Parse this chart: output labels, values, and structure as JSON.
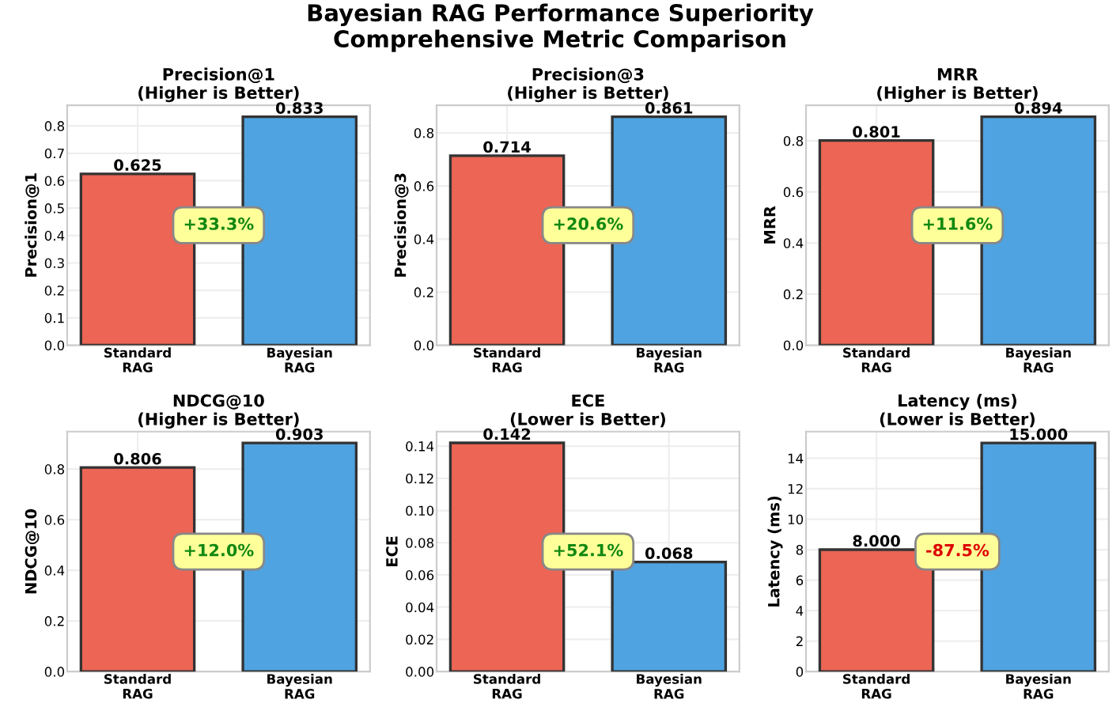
{
  "chart_data": [
    {
      "type": "bar",
      "title": "Precision@1\n(Higher is Better)",
      "subtitle": "Bayesian RAG Performance Superiority\nComprehensive Metric Comparison",
      "ylabel": "Precision@1",
      "categories": [
        "Standard\nRAG",
        "Bayesian\nRAG"
      ],
      "values": [
        0.625,
        0.833
      ],
      "value_labels": [
        "0.625",
        "0.833"
      ],
      "colors": [
        "#ec6555",
        "#4fa3e0"
      ],
      "ylim": [
        0,
        0.875
      ],
      "yticks": [
        {
          "value": 0,
          "label": "0.0"
        },
        0.1,
        0.2,
        0.3,
        0.4,
        0.5,
        0.6,
        0.7,
        0.8
      ],
      "grid": true,
      "annotations": [
        "+33.3%"
      ]
    },
    {
      "type": "bar",
      "title": "Precision@3\n(Higher is Better)",
      "ylabel": "Precision@3",
      "categories": [
        "Standard\nRAG",
        "Bayesian\nRAG"
      ],
      "values": [
        0.714,
        0.861
      ],
      "value_labels": [
        "0.714",
        "0.861"
      ],
      "colors": [
        "#ec6555",
        "#4fa3e0"
      ],
      "ylim": [
        0,
        0.904
      ],
      "yticks": [
        {
          "value": 0,
          "label": "0.0"
        },
        0.2,
        0.4,
        0.6,
        0.8
      ],
      "grid": true,
      "annotations": [
        "+20.6%"
      ]
    },
    {
      "type": "bar",
      "title": "MRR\n(Higher is Better)",
      "ylabel": "MRR",
      "categories": [
        "Standard\nRAG",
        "Bayesian\nRAG"
      ],
      "values": [
        0.801,
        0.894
      ],
      "value_labels": [
        "0.801",
        "0.894"
      ],
      "colors": [
        "#ec6555",
        "#4fa3e0"
      ],
      "ylim": [
        0,
        0.939
      ],
      "yticks": [
        {
          "value": 0,
          "label": "0.0"
        },
        0.2,
        0.4,
        0.6,
        0.8
      ],
      "grid": true,
      "annotations": [
        "+11.6%"
      ]
    },
    {
      "type": "bar",
      "title": "NDCG@10\n(Higher is Better)",
      "ylabel": "NDCG@10",
      "categories": [
        "Standard\nRAG",
        "Bayesian\nRAG"
      ],
      "values": [
        0.806,
        0.903
      ],
      "value_labels": [
        "0.806",
        "0.903"
      ],
      "colors": [
        "#ec6555",
        "#4fa3e0"
      ],
      "ylim": [
        0,
        0.948
      ],
      "yticks": [
        {
          "value": 0,
          "label": "0.0"
        },
        0.2,
        0.4,
        0.6,
        0.8
      ],
      "grid": true,
      "annotations": [
        "+12.0%"
      ]
    },
    {
      "type": "bar",
      "title": "ECE\n(Lower is Better)",
      "ylabel": "ECE",
      "categories": [
        "Standard\nRAG",
        "Bayesian\nRAG"
      ],
      "values": [
        0.142,
        0.068
      ],
      "value_labels": [
        "0.142",
        "0.068"
      ],
      "colors": [
        "#ec6555",
        "#4fa3e0"
      ],
      "ylim": [
        0,
        0.149
      ],
      "yticks": [
        {
          "value": 0,
          "label": "0.00"
        },
        {
          "value": 0.02,
          "label": "0.02"
        },
        {
          "value": 0.04,
          "label": "0.04"
        },
        {
          "value": 0.06,
          "label": "0.06"
        },
        {
          "value": 0.08,
          "label": "0.08"
        },
        {
          "value": 0.1,
          "label": "0.10"
        },
        {
          "value": 0.12,
          "label": "0.12"
        },
        {
          "value": 0.14,
          "label": "0.14"
        }
      ],
      "grid": true,
      "annotations": [
        "+52.1%"
      ]
    },
    {
      "type": "bar",
      "title": "Latency (ms)\n(Lower is Better)",
      "ylabel": "Latency (ms)",
      "categories": [
        "Standard\nRAG",
        "Bayesian\nRAG"
      ],
      "values": [
        8,
        15
      ],
      "value_labels": [
        "8.000",
        "15.000"
      ],
      "colors": [
        "#ec6555",
        "#4fa3e0"
      ],
      "ylim": [
        0,
        15.75
      ],
      "yticks": [
        0,
        2,
        4,
        6,
        8,
        10,
        12,
        14
      ],
      "grid": true,
      "annotations": [
        "-87.5%"
      ]
    }
  ]
}
